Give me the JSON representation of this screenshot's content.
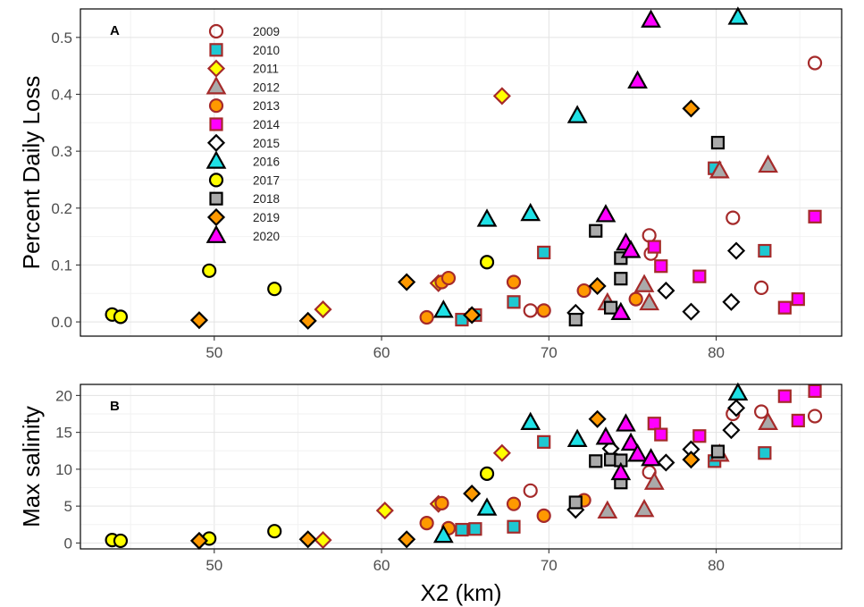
{
  "chart_data": [
    {
      "type": "scatter",
      "panel_label": "A",
      "xlabel": "",
      "ylabel": "Percent Daily Loss",
      "xlim": [
        42,
        87.5
      ],
      "ylim": [
        -0.025,
        0.55
      ],
      "x_ticks": [
        50,
        60,
        70,
        80
      ],
      "y_ticks": [
        0.0,
        0.1,
        0.2,
        0.3,
        0.4,
        0.5
      ],
      "y_tick_labels": [
        "0.0",
        "0.1",
        "0.2",
        "0.3",
        "0.4",
        "0.5"
      ],
      "grid": true,
      "legend": "top-left",
      "series": [
        {
          "name": "2009",
          "marker": "circle-open",
          "edge": "#a52a2a",
          "fill": "none",
          "points": [
            [
              68.9,
              0.02
            ],
            [
              76.0,
              0.152
            ],
            [
              76.1,
              0.12
            ],
            [
              81.0,
              0.183
            ],
            [
              82.7,
              0.06
            ],
            [
              85.9,
              0.455
            ]
          ]
        },
        {
          "name": "2010",
          "marker": "square",
          "edge": "#a52a2a",
          "fill": "#1ec8d2",
          "points": [
            [
              64.8,
              0.004
            ],
            [
              65.6,
              0.012
            ],
            [
              67.9,
              0.035
            ],
            [
              69.7,
              0.122
            ],
            [
              79.9,
              0.27
            ],
            [
              82.9,
              0.125
            ]
          ]
        },
        {
          "name": "2011",
          "marker": "diamond",
          "edge": "#a52a2a",
          "fill": "#ffff00",
          "points": [
            [
              56.5,
              0.022
            ],
            [
              63.4,
              0.068
            ],
            [
              67.2,
              0.397
            ]
          ]
        },
        {
          "name": "2012",
          "marker": "triangle",
          "edge": "#a52a2a",
          "fill": "#aaaaaa",
          "points": [
            [
              73.5,
              0.033
            ],
            [
              75.7,
              0.065
            ],
            [
              76.0,
              0.033
            ],
            [
              80.2,
              0.265
            ],
            [
              83.1,
              0.275
            ]
          ]
        },
        {
          "name": "2013",
          "marker": "circle",
          "edge": "#a52a2a",
          "fill": "#ff9900",
          "points": [
            [
              62.7,
              0.008
            ],
            [
              63.6,
              0.07
            ],
            [
              64.0,
              0.077
            ],
            [
              67.9,
              0.07
            ],
            [
              69.7,
              0.02
            ],
            [
              72.1,
              0.055
            ],
            [
              75.2,
              0.04
            ]
          ]
        },
        {
          "name": "2014",
          "marker": "square",
          "edge": "#a52a2a",
          "fill": "#ff00ff",
          "points": [
            [
              76.3,
              0.132
            ],
            [
              76.7,
              0.098
            ],
            [
              79.0,
              0.08
            ],
            [
              84.1,
              0.025
            ],
            [
              84.9,
              0.04
            ],
            [
              85.9,
              0.185
            ]
          ]
        },
        {
          "name": "2015",
          "marker": "diamond-open",
          "edge": "#000000",
          "fill": "#ffffff",
          "points": [
            [
              71.6,
              0.016
            ],
            [
              77.0,
              0.055
            ],
            [
              78.5,
              0.018
            ],
            [
              80.9,
              0.035
            ],
            [
              81.2,
              0.125
            ]
          ]
        },
        {
          "name": "2016",
          "marker": "triangle",
          "edge": "#000000",
          "fill": "#1ee1e6",
          "points": [
            [
              63.7,
              0.02
            ],
            [
              66.3,
              0.18
            ],
            [
              68.9,
              0.19
            ],
            [
              71.7,
              0.362
            ],
            [
              81.3,
              0.535
            ]
          ]
        },
        {
          "name": "2017",
          "marker": "circle",
          "edge": "#000000",
          "fill": "#ffff00",
          "points": [
            [
              43.9,
              0.013
            ],
            [
              44.4,
              0.009
            ],
            [
              49.7,
              0.09
            ],
            [
              53.6,
              0.058
            ],
            [
              66.3,
              0.105
            ]
          ]
        },
        {
          "name": "2018",
          "marker": "square",
          "edge": "#000000",
          "fill": "#aaaaaa",
          "points": [
            [
              71.6,
              0.004
            ],
            [
              72.8,
              0.16
            ],
            [
              73.7,
              0.025
            ],
            [
              74.3,
              0.112
            ],
            [
              74.3,
              0.076
            ],
            [
              80.1,
              0.315
            ]
          ]
        },
        {
          "name": "2019",
          "marker": "diamond",
          "edge": "#000000",
          "fill": "#ff9900",
          "points": [
            [
              49.1,
              0.003
            ],
            [
              55.6,
              0.002
            ],
            [
              61.5,
              0.07
            ],
            [
              65.4,
              0.012
            ],
            [
              72.9,
              0.063
            ],
            [
              78.5,
              0.375
            ]
          ]
        },
        {
          "name": "2020",
          "marker": "triangle",
          "edge": "#000000",
          "fill": "#ff00ff",
          "points": [
            [
              73.4,
              0.188
            ],
            [
              74.3,
              0.016
            ],
            [
              74.6,
              0.138
            ],
            [
              74.9,
              0.125
            ],
            [
              75.3,
              0.423
            ],
            [
              76.1,
              0.53
            ]
          ]
        }
      ]
    },
    {
      "type": "scatter",
      "panel_label": "B",
      "xlabel": "X2 (km)",
      "ylabel": "Max salinity",
      "xlim": [
        42,
        87.5
      ],
      "ylim": [
        -0.8,
        21.5
      ],
      "x_ticks": [
        50,
        60,
        70,
        80
      ],
      "y_ticks": [
        0,
        5,
        10,
        15,
        20
      ],
      "y_tick_labels": [
        "0",
        "5",
        "10",
        "15",
        "20"
      ],
      "grid": true,
      "series": [
        {
          "name": "2009",
          "points": [
            [
              68.9,
              7.1
            ],
            [
              76.0,
              9.6
            ],
            [
              81.0,
              17.5
            ],
            [
              82.7,
              17.8
            ],
            [
              85.9,
              17.2
            ]
          ]
        },
        {
          "name": "2010",
          "points": [
            [
              64.8,
              1.8
            ],
            [
              65.6,
              1.9
            ],
            [
              67.9,
              2.2
            ],
            [
              69.7,
              13.7
            ],
            [
              79.9,
              11.1
            ],
            [
              82.9,
              12.2
            ]
          ]
        },
        {
          "name": "2011",
          "points": [
            [
              56.5,
              0.4
            ],
            [
              60.2,
              4.4
            ],
            [
              63.4,
              5.3
            ],
            [
              67.2,
              12.2
            ]
          ]
        },
        {
          "name": "2012",
          "points": [
            [
              73.5,
              4.3
            ],
            [
              75.7,
              4.5
            ],
            [
              76.3,
              8.2
            ],
            [
              80.2,
              12.0
            ],
            [
              83.1,
              16.3
            ]
          ]
        },
        {
          "name": "2013",
          "points": [
            [
              62.7,
              2.7
            ],
            [
              63.6,
              5.4
            ],
            [
              64.0,
              2.0
            ],
            [
              67.9,
              5.3
            ],
            [
              69.7,
              3.7
            ],
            [
              72.1,
              5.8
            ]
          ]
        },
        {
          "name": "2014",
          "points": [
            [
              76.3,
              16.2
            ],
            [
              76.7,
              14.7
            ],
            [
              79.0,
              14.5
            ],
            [
              84.1,
              19.9
            ],
            [
              84.9,
              16.6
            ],
            [
              85.9,
              20.6
            ]
          ]
        },
        {
          "name": "2015",
          "points": [
            [
              71.6,
              4.5
            ],
            [
              73.7,
              12.8
            ],
            [
              77.0,
              10.9
            ],
            [
              78.5,
              12.7
            ],
            [
              80.9,
              15.3
            ],
            [
              81.2,
              18.3
            ]
          ]
        },
        {
          "name": "2016",
          "points": [
            [
              63.7,
              1.0
            ],
            [
              66.3,
              4.7
            ],
            [
              68.9,
              16.3
            ],
            [
              71.7,
              14.0
            ],
            [
              81.3,
              20.3
            ]
          ]
        },
        {
          "name": "2017",
          "points": [
            [
              43.9,
              0.4
            ],
            [
              44.4,
              0.3
            ],
            [
              49.7,
              0.6
            ],
            [
              53.6,
              1.6
            ],
            [
              66.3,
              9.4
            ]
          ]
        },
        {
          "name": "2018",
          "points": [
            [
              71.6,
              5.5
            ],
            [
              72.8,
              11.1
            ],
            [
              73.7,
              11.3
            ],
            [
              74.3,
              8.2
            ],
            [
              74.3,
              11.2
            ],
            [
              80.1,
              12.4
            ]
          ]
        },
        {
          "name": "2019",
          "points": [
            [
              49.1,
              0.3
            ],
            [
              55.6,
              0.5
            ],
            [
              61.5,
              0.5
            ],
            [
              65.4,
              6.7
            ],
            [
              72.9,
              16.8
            ],
            [
              78.5,
              11.3
            ]
          ]
        },
        {
          "name": "2020",
          "points": [
            [
              73.4,
              14.3
            ],
            [
              74.3,
              9.5
            ],
            [
              74.6,
              16.1
            ],
            [
              74.9,
              13.5
            ],
            [
              75.3,
              12.0
            ],
            [
              76.1,
              11.4
            ]
          ]
        }
      ]
    }
  ]
}
